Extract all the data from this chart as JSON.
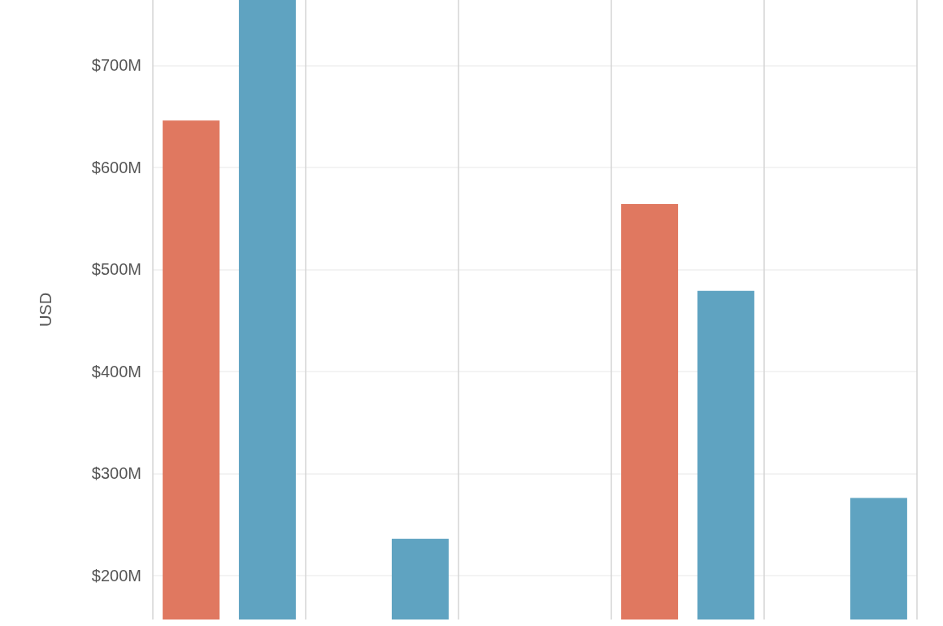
{
  "chart_data": {
    "type": "bar",
    "ylabel": "USD",
    "categories": [
      null,
      null,
      null,
      null,
      null
    ],
    "series": [
      {
        "color": "#e07860",
        "values": [
          646,
          null,
          null,
          564,
          null
        ]
      },
      {
        "color": "#5fa3c1",
        "values": [
          764,
          236,
          null,
          479,
          276
        ]
      }
    ],
    "ylim": [
      157,
      764
    ],
    "yticks": [
      {
        "value": 200,
        "label": "$200M"
      },
      {
        "value": 300,
        "label": "$300M"
      },
      {
        "value": 400,
        "label": "$400M"
      },
      {
        "value": 500,
        "label": "$500M"
      },
      {
        "value": 600,
        "label": "$600M"
      },
      {
        "value": 700,
        "label": "$700M"
      }
    ],
    "grid": true
  }
}
